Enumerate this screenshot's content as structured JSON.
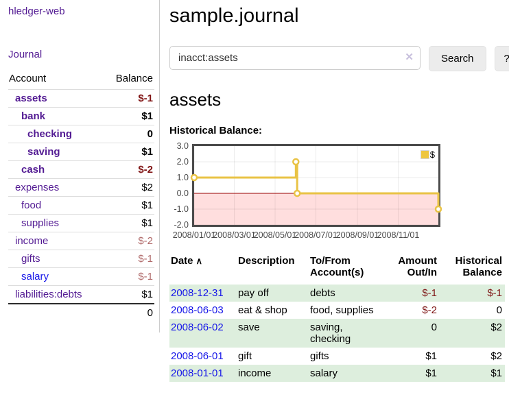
{
  "sidebar": {
    "brand": "hledger-web",
    "journal_link": "Journal",
    "account_header": "Account",
    "balance_header": "Balance",
    "accounts": [
      {
        "label": "assets",
        "balance": "$-1",
        "row_cls": "lvl1 strong",
        "bal_cls": "neg",
        "link_cls": ""
      },
      {
        "label": "bank",
        "balance": "$1",
        "row_cls": "lvl2 strong",
        "bal_cls": "",
        "link_cls": ""
      },
      {
        "label": "checking",
        "balance": "0",
        "row_cls": "lvl3 strong",
        "bal_cls": "",
        "link_cls": ""
      },
      {
        "label": "saving",
        "balance": "$1",
        "row_cls": "lvl3 strong",
        "bal_cls": "",
        "link_cls": ""
      },
      {
        "label": "cash",
        "balance": "$-2",
        "row_cls": "lvl2 strong",
        "bal_cls": "neg",
        "link_cls": ""
      },
      {
        "label": "expenses",
        "balance": "$2",
        "row_cls": "lvl1",
        "bal_cls": "",
        "link_cls": ""
      },
      {
        "label": "food",
        "balance": "$1",
        "row_cls": "lvl2",
        "bal_cls": "",
        "link_cls": ""
      },
      {
        "label": "supplies",
        "balance": "$1",
        "row_cls": "lvl2",
        "bal_cls": "",
        "link_cls": ""
      },
      {
        "label": "income",
        "balance": "$-2",
        "row_cls": "lvl1",
        "bal_cls": "negsoft",
        "link_cls": ""
      },
      {
        "label": "gifts",
        "balance": "$-1",
        "row_cls": "lvl2",
        "bal_cls": "negsoft",
        "link_cls": ""
      },
      {
        "label": "salary",
        "balance": "$-1",
        "row_cls": "lvl2",
        "bal_cls": "negsoft",
        "link_cls": "blue"
      },
      {
        "label": "liabilities:debts",
        "balance": "$1",
        "row_cls": "lvl1",
        "bal_cls": "",
        "link_cls": ""
      }
    ],
    "total": "0"
  },
  "header": {
    "title": "sample.journal"
  },
  "search": {
    "value": "inacct:assets",
    "clear_icon": "✕",
    "button_label": "Search",
    "help_label": "?"
  },
  "account_page": {
    "heading": "assets",
    "chart_label": "Historical Balance:"
  },
  "chart_data": {
    "type": "line",
    "title": "Historical Balance",
    "step": true,
    "series": [
      {
        "name": "$",
        "color": "#e9c345",
        "points": [
          [
            "2008-01-01",
            1.0
          ],
          [
            "2008-06-01",
            2.0
          ],
          [
            "2008-06-03",
            0.0
          ],
          [
            "2008-12-31",
            -1.0
          ]
        ]
      }
    ],
    "x_range": [
      "2008-01-01",
      "2008-12-31"
    ],
    "x_ticks": [
      "2008/01/01",
      "2008/03/01",
      "2008/05/01",
      "2008/07/01",
      "2008/09/01",
      "2008/11/01"
    ],
    "y_ticks": [
      3.0,
      2.0,
      1.0,
      0.0,
      -1.0,
      -2.0
    ],
    "ylim": [
      -2,
      3
    ],
    "grid": true,
    "negative_region_color": "#ffdede",
    "zero_line_color": "#990000",
    "legend": {
      "label": "$",
      "position": "top-right"
    }
  },
  "register": {
    "header_date": "Date",
    "sort_icon": "∧",
    "header_description": "Description",
    "header_accounts": "To/From Account(s)",
    "header_amount": "Amount Out/In",
    "header_balance": "Historical Balance",
    "rows": [
      {
        "date": "2008-12-31",
        "description": "pay off",
        "accounts": "debts",
        "amount": "$-1",
        "balance": "$-1",
        "shade": "green",
        "amount_cls": "amt-neg",
        "balance_cls": "amt-neg"
      },
      {
        "date": "2008-06-03",
        "description": "eat & shop",
        "accounts": "food, supplies",
        "amount": "$-2",
        "balance": "0",
        "shade": "",
        "amount_cls": "amt-neg",
        "balance_cls": ""
      },
      {
        "date": "2008-06-02",
        "description": "save",
        "accounts": "saving, checking",
        "amount": "0",
        "balance": "$2",
        "shade": "green",
        "amount_cls": "",
        "balance_cls": ""
      },
      {
        "date": "2008-06-01",
        "description": "gift",
        "accounts": "gifts",
        "amount": "$1",
        "balance": "$2",
        "shade": "",
        "amount_cls": "",
        "balance_cls": ""
      },
      {
        "date": "2008-01-01",
        "description": "income",
        "accounts": "salary",
        "amount": "$1",
        "balance": "$1",
        "shade": "green",
        "amount_cls": "",
        "balance_cls": ""
      }
    ]
  },
  "colors": {
    "link_purple": "#531b93",
    "link_blue": "#1616e8",
    "negative_strong": "#801414",
    "negative_soft": "#b06a6a",
    "row_green": "#ddeedd",
    "chart_gold": "#e9c345",
    "chart_negative_fill": "#ffdede"
  }
}
